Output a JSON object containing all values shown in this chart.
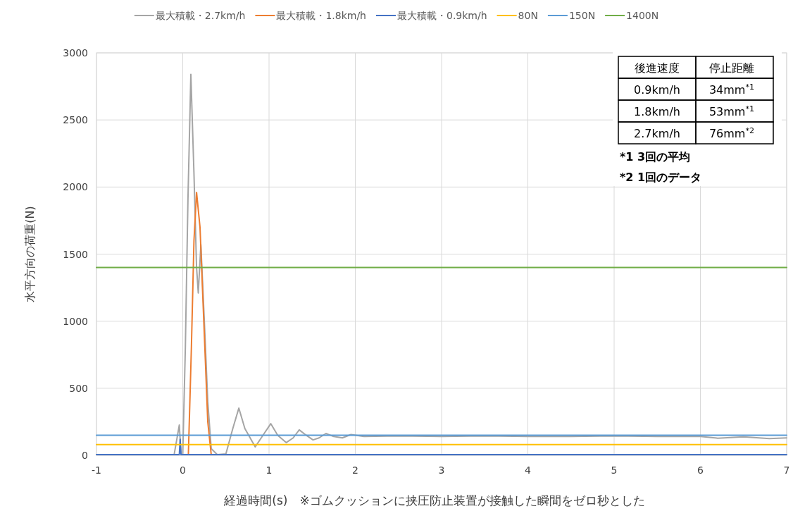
{
  "chart_data": {
    "type": "line",
    "xlabel": "経過時間(s)　※ゴムクッションに挟圧防止装置が接触した瞬間をゼロ秒とした",
    "ylabel": "水平方向の荷重(N)",
    "xlim": [
      -1,
      7
    ],
    "xticks": [
      -1,
      0,
      1,
      2,
      3,
      4,
      5,
      6,
      7
    ],
    "ylim": [
      0,
      3000
    ],
    "yticks": [
      0,
      500,
      1000,
      1500,
      2000,
      2500,
      3000
    ],
    "grid": true,
    "legend": "top",
    "marker": "none",
    "line_style": "solid",
    "series": [
      {
        "name": "最大積載・2.7km/h",
        "color": "#a5a5a5",
        "x": [
          -1,
          -0.5,
          -0.1,
          -0.04,
          -0.02,
          0,
          0.03,
          0.06,
          0.094,
          0.13,
          0.16,
          0.18,
          0.21,
          0.25,
          0.29,
          0.33,
          0.4,
          0.5,
          0.58,
          0.65,
          0.72,
          0.84,
          0.93,
          1.02,
          1.1,
          1.2,
          1.28,
          1.35,
          1.43,
          1.51,
          1.58,
          1.66,
          1.75,
          1.85,
          1.95,
          2.1,
          2.5,
          3,
          3.5,
          4,
          4.5,
          5,
          5.5,
          6,
          6.2,
          6.5,
          6.8,
          7
        ],
        "values": [
          5,
          5,
          5,
          226,
          5,
          5,
          800,
          1900,
          2840,
          2100,
          1400,
          1210,
          1571,
          1000,
          400,
          50,
          5,
          10,
          200,
          352,
          200,
          63,
          150,
          236,
          150,
          95,
          130,
          190,
          150,
          115,
          130,
          163,
          140,
          130,
          155,
          140,
          145,
          140,
          145,
          140,
          140,
          145,
          140,
          140,
          128,
          138,
          125,
          130
        ]
      },
      {
        "name": "最大積載・1.8km/h",
        "color": "#ed7d31",
        "x": [
          0.065,
          0.1,
          0.13,
          0.16,
          0.2,
          0.25,
          0.29,
          0.33
        ],
        "values": [
          5,
          800,
          1600,
          1960,
          1700,
          900,
          250,
          5
        ]
      },
      {
        "name": "最大積載・0.9km/h",
        "color": "#4472c4",
        "x": [
          -1,
          -0.04,
          -0.03,
          -0.02,
          0.5,
          1,
          2,
          3,
          4,
          5,
          6,
          7
        ],
        "values": [
          5,
          5,
          120,
          5,
          5,
          5,
          5,
          5,
          5,
          5,
          5,
          5
        ]
      },
      {
        "name": "80N",
        "color": "#ffc000",
        "x": [
          -1,
          7
        ],
        "values": [
          80,
          80
        ]
      },
      {
        "name": "150N",
        "color": "#5b9bd5",
        "x": [
          -1,
          7
        ],
        "values": [
          150,
          150
        ]
      },
      {
        "name": "1400N",
        "color": "#70ad47",
        "x": [
          -1,
          7
        ],
        "values": [
          1400,
          1400
        ]
      }
    ],
    "annotations": [
      "後進速度",
      "停止距離",
      "0.9km/h",
      "34mm$^{*1}$",
      "1.8km/h",
      "53mm$^{*1}$",
      "2.7km/h",
      "76mm$^{*2}$",
      "*1 3回の平均",
      "*2 1回のデータ"
    ]
  }
}
